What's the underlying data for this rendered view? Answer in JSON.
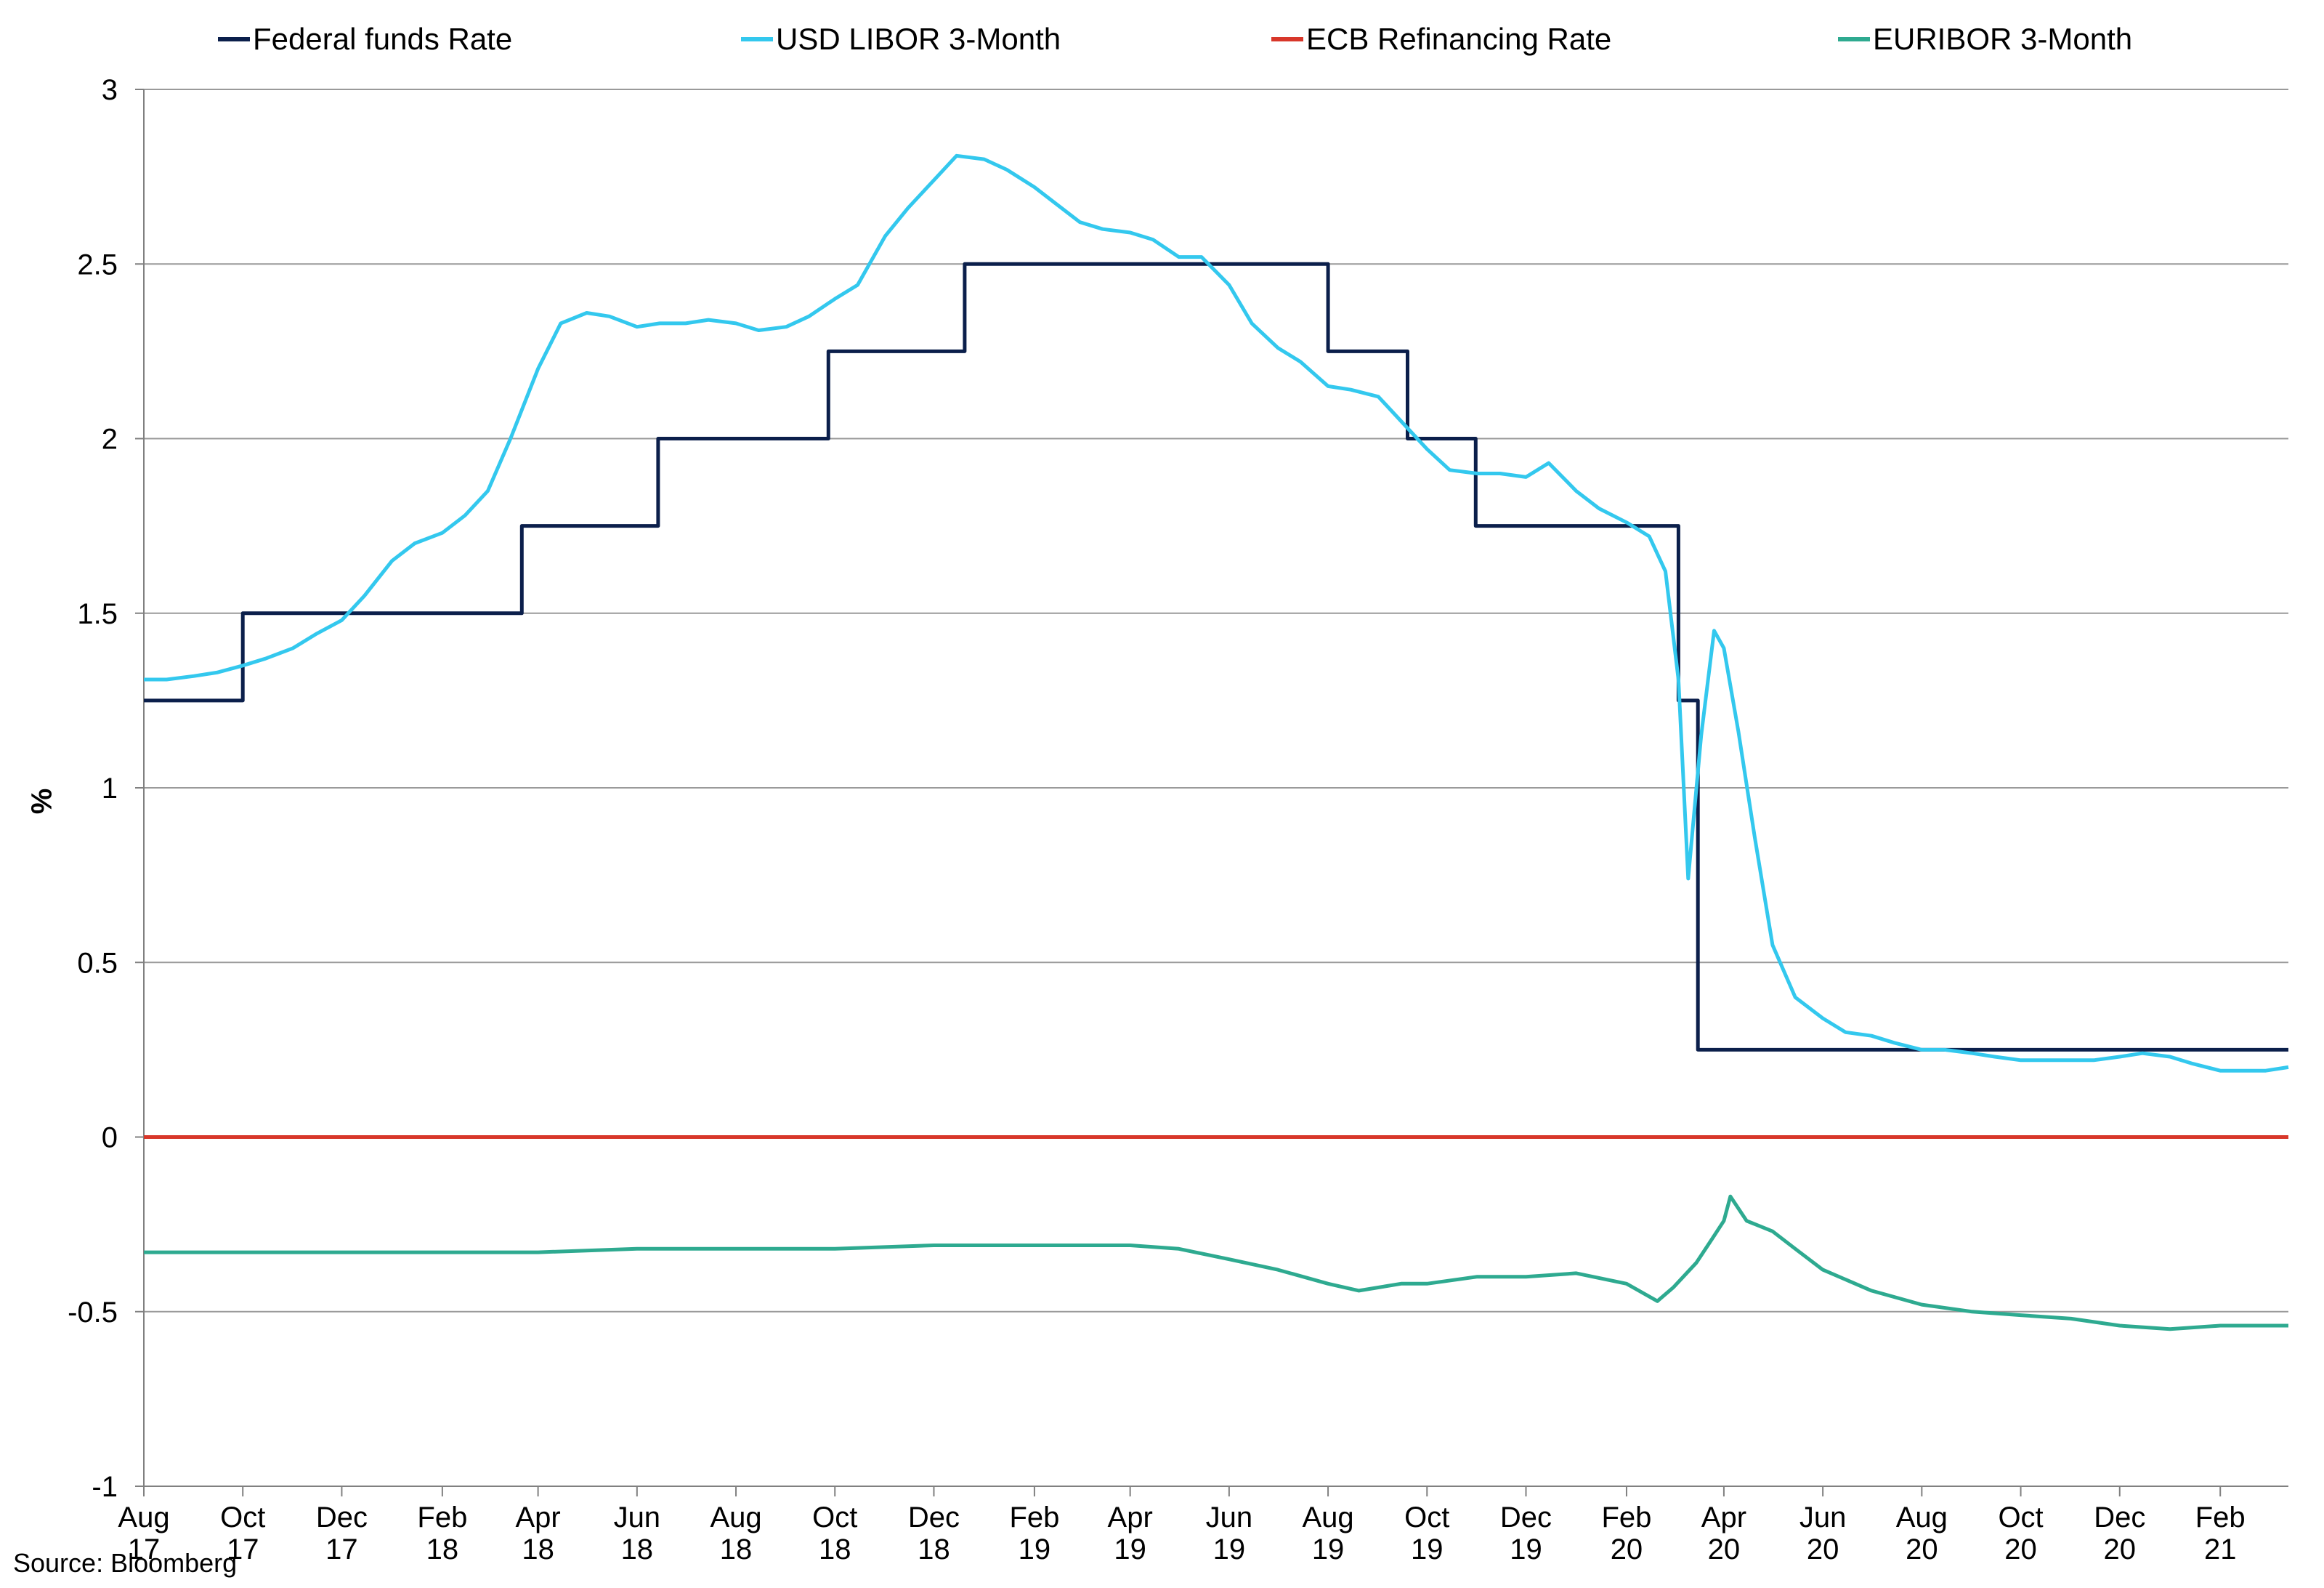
{
  "chart_data": {
    "type": "line",
    "ylabel": "%",
    "ylim": [
      -1,
      3
    ],
    "yticks": [
      "3",
      "2.5",
      "2",
      "1.5",
      "1",
      "0.5",
      "0",
      "-0.5",
      "-1"
    ],
    "yticks_values": [
      3,
      2.5,
      2,
      1.5,
      1,
      0.5,
      0,
      -0.5,
      -1
    ],
    "xticks": [
      {
        "month": "Aug",
        "year": "17"
      },
      {
        "month": "Oct",
        "year": "17"
      },
      {
        "month": "Dec",
        "year": "17"
      },
      {
        "month": "Feb",
        "year": "18"
      },
      {
        "month": "Apr",
        "year": "18"
      },
      {
        "month": "Jun",
        "year": "18"
      },
      {
        "month": "Aug",
        "year": "18"
      },
      {
        "month": "Oct",
        "year": "18"
      },
      {
        "month": "Dec",
        "year": "18"
      },
      {
        "month": "Feb",
        "year": "19"
      },
      {
        "month": "Apr",
        "year": "19"
      },
      {
        "month": "Jun",
        "year": "19"
      },
      {
        "month": "Aug",
        "year": "19"
      },
      {
        "month": "Oct",
        "year": "19"
      },
      {
        "month": "Dec",
        "year": "19"
      },
      {
        "month": "Feb",
        "year": "20"
      },
      {
        "month": "Apr",
        "year": "20"
      },
      {
        "month": "Jun",
        "year": "20"
      },
      {
        "month": "Aug",
        "year": "20"
      },
      {
        "month": "Oct",
        "year": "20"
      },
      {
        "month": "Dec",
        "year": "20"
      },
      {
        "month": "Feb",
        "year": "21"
      }
    ],
    "x_start": "2017-08-01",
    "x_end": "2021-03-15",
    "grid": true,
    "legend_position": "top",
    "series": [
      {
        "name": "Federal funds Rate",
        "color": "#0b1f4b",
        "step": true,
        "points": [
          [
            "2017-08-01",
            1.25
          ],
          [
            "2017-10-01",
            1.5
          ],
          [
            "2017-12-14",
            1.5
          ],
          [
            "2018-03-22",
            1.75
          ],
          [
            "2018-06-14",
            2.0
          ],
          [
            "2018-09-27",
            2.25
          ],
          [
            "2018-12-20",
            2.5
          ],
          [
            "2019-08-01",
            2.25
          ],
          [
            "2019-09-19",
            2.0
          ],
          [
            "2019-10-31",
            1.75
          ],
          [
            "2020-03-04",
            1.25
          ],
          [
            "2020-03-16",
            0.25
          ],
          [
            "2021-03-15",
            0.25
          ]
        ]
      },
      {
        "name": "USD LIBOR 3-Month",
        "color": "#33c8ee",
        "step": false,
        "points": [
          [
            "2017-08-01",
            1.31
          ],
          [
            "2017-08-15",
            1.31
          ],
          [
            "2017-09-01",
            1.32
          ],
          [
            "2017-09-15",
            1.33
          ],
          [
            "2017-10-01",
            1.35
          ],
          [
            "2017-10-15",
            1.37
          ],
          [
            "2017-11-01",
            1.4
          ],
          [
            "2017-11-15",
            1.44
          ],
          [
            "2017-12-01",
            1.48
          ],
          [
            "2017-12-15",
            1.55
          ],
          [
            "2018-01-01",
            1.65
          ],
          [
            "2018-01-15",
            1.7
          ],
          [
            "2018-02-01",
            1.73
          ],
          [
            "2018-02-15",
            1.78
          ],
          [
            "2018-03-01",
            1.85
          ],
          [
            "2018-03-15",
            2.0
          ],
          [
            "2018-04-01",
            2.2
          ],
          [
            "2018-04-15",
            2.33
          ],
          [
            "2018-05-01",
            2.36
          ],
          [
            "2018-05-15",
            2.35
          ],
          [
            "2018-06-01",
            2.32
          ],
          [
            "2018-06-15",
            2.33
          ],
          [
            "2018-07-01",
            2.33
          ],
          [
            "2018-07-15",
            2.34
          ],
          [
            "2018-08-01",
            2.33
          ],
          [
            "2018-08-15",
            2.31
          ],
          [
            "2018-09-01",
            2.32
          ],
          [
            "2018-09-15",
            2.35
          ],
          [
            "2018-10-01",
            2.4
          ],
          [
            "2018-10-15",
            2.44
          ],
          [
            "2018-11-01",
            2.58
          ],
          [
            "2018-11-15",
            2.66
          ],
          [
            "2018-12-01",
            2.74
          ],
          [
            "2018-12-15",
            2.81
          ],
          [
            "2019-01-01",
            2.8
          ],
          [
            "2019-01-15",
            2.77
          ],
          [
            "2019-02-01",
            2.72
          ],
          [
            "2019-02-15",
            2.67
          ],
          [
            "2019-03-01",
            2.62
          ],
          [
            "2019-03-15",
            2.6
          ],
          [
            "2019-04-01",
            2.59
          ],
          [
            "2019-04-15",
            2.57
          ],
          [
            "2019-05-01",
            2.52
          ],
          [
            "2019-05-15",
            2.52
          ],
          [
            "2019-06-01",
            2.44
          ],
          [
            "2019-06-15",
            2.33
          ],
          [
            "2019-07-01",
            2.26
          ],
          [
            "2019-07-15",
            2.22
          ],
          [
            "2019-08-01",
            2.15
          ],
          [
            "2019-08-15",
            2.14
          ],
          [
            "2019-09-01",
            2.12
          ],
          [
            "2019-09-15",
            2.05
          ],
          [
            "2019-10-01",
            1.97
          ],
          [
            "2019-10-15",
            1.91
          ],
          [
            "2019-11-01",
            1.9
          ],
          [
            "2019-11-15",
            1.9
          ],
          [
            "2019-12-01",
            1.89
          ],
          [
            "2019-12-15",
            1.93
          ],
          [
            "2020-01-01",
            1.85
          ],
          [
            "2020-01-15",
            1.8
          ],
          [
            "2020-02-01",
            1.76
          ],
          [
            "2020-02-15",
            1.72
          ],
          [
            "2020-02-25",
            1.62
          ],
          [
            "2020-03-04",
            1.31
          ],
          [
            "2020-03-10",
            0.74
          ],
          [
            "2020-03-18",
            1.15
          ],
          [
            "2020-03-26",
            1.45
          ],
          [
            "2020-04-01",
            1.4
          ],
          [
            "2020-04-10",
            1.16
          ],
          [
            "2020-04-20",
            0.86
          ],
          [
            "2020-05-01",
            0.55
          ],
          [
            "2020-05-15",
            0.4
          ],
          [
            "2020-06-01",
            0.34
          ],
          [
            "2020-06-15",
            0.3
          ],
          [
            "2020-07-01",
            0.29
          ],
          [
            "2020-07-15",
            0.27
          ],
          [
            "2020-08-01",
            0.25
          ],
          [
            "2020-08-15",
            0.25
          ],
          [
            "2020-09-01",
            0.24
          ],
          [
            "2020-09-15",
            0.23
          ],
          [
            "2020-10-01",
            0.22
          ],
          [
            "2020-10-15",
            0.22
          ],
          [
            "2020-11-01",
            0.22
          ],
          [
            "2020-11-15",
            0.22
          ],
          [
            "2020-12-01",
            0.23
          ],
          [
            "2020-12-15",
            0.24
          ],
          [
            "2021-01-01",
            0.23
          ],
          [
            "2021-01-15",
            0.21
          ],
          [
            "2021-02-01",
            0.19
          ],
          [
            "2021-02-15",
            0.19
          ],
          [
            "2021-03-01",
            0.19
          ],
          [
            "2021-03-15",
            0.2
          ]
        ]
      },
      {
        "name": "ECB Refinancing Rate",
        "color": "#d8372a",
        "step": false,
        "points": [
          [
            "2017-08-01",
            0
          ],
          [
            "2021-03-15",
            0
          ]
        ]
      },
      {
        "name": "EURIBOR 3-Month",
        "color": "#2eaa90",
        "step": false,
        "points": [
          [
            "2017-08-01",
            -0.33
          ],
          [
            "2017-10-01",
            -0.33
          ],
          [
            "2017-12-01",
            -0.33
          ],
          [
            "2018-02-01",
            -0.33
          ],
          [
            "2018-04-01",
            -0.33
          ],
          [
            "2018-06-01",
            -0.32
          ],
          [
            "2018-08-01",
            -0.32
          ],
          [
            "2018-10-01",
            -0.32
          ],
          [
            "2018-12-01",
            -0.31
          ],
          [
            "2019-02-01",
            -0.31
          ],
          [
            "2019-04-01",
            -0.31
          ],
          [
            "2019-05-01",
            -0.32
          ],
          [
            "2019-06-01",
            -0.35
          ],
          [
            "2019-07-01",
            -0.38
          ],
          [
            "2019-08-01",
            -0.42
          ],
          [
            "2019-08-20",
            -0.44
          ],
          [
            "2019-09-15",
            -0.42
          ],
          [
            "2019-10-01",
            -0.42
          ],
          [
            "2019-11-01",
            -0.4
          ],
          [
            "2019-12-01",
            -0.4
          ],
          [
            "2020-01-01",
            -0.39
          ],
          [
            "2020-02-01",
            -0.42
          ],
          [
            "2020-02-20",
            -0.47
          ],
          [
            "2020-03-01",
            -0.43
          ],
          [
            "2020-03-15",
            -0.36
          ],
          [
            "2020-03-25",
            -0.29
          ],
          [
            "2020-04-01",
            -0.24
          ],
          [
            "2020-04-05",
            -0.17
          ],
          [
            "2020-04-15",
            -0.24
          ],
          [
            "2020-05-01",
            -0.27
          ],
          [
            "2020-05-15",
            -0.32
          ],
          [
            "2020-06-01",
            -0.38
          ],
          [
            "2020-07-01",
            -0.44
          ],
          [
            "2020-08-01",
            -0.48
          ],
          [
            "2020-09-01",
            -0.5
          ],
          [
            "2020-10-01",
            -0.51
          ],
          [
            "2020-11-01",
            -0.52
          ],
          [
            "2020-12-01",
            -0.54
          ],
          [
            "2021-01-01",
            -0.55
          ],
          [
            "2021-02-01",
            -0.54
          ],
          [
            "2021-03-15",
            -0.54
          ]
        ]
      }
    ]
  },
  "legend": {
    "items": [
      {
        "label": "Federal funds Rate",
        "color": "#0b1f4b"
      },
      {
        "label": "USD LIBOR 3-Month",
        "color": "#33c8ee"
      },
      {
        "label": "ECB Refinancing Rate",
        "color": "#d8372a"
      },
      {
        "label": "EURIBOR 3-Month",
        "color": "#2eaa90"
      }
    ]
  },
  "source": "Source: Bloomberg"
}
